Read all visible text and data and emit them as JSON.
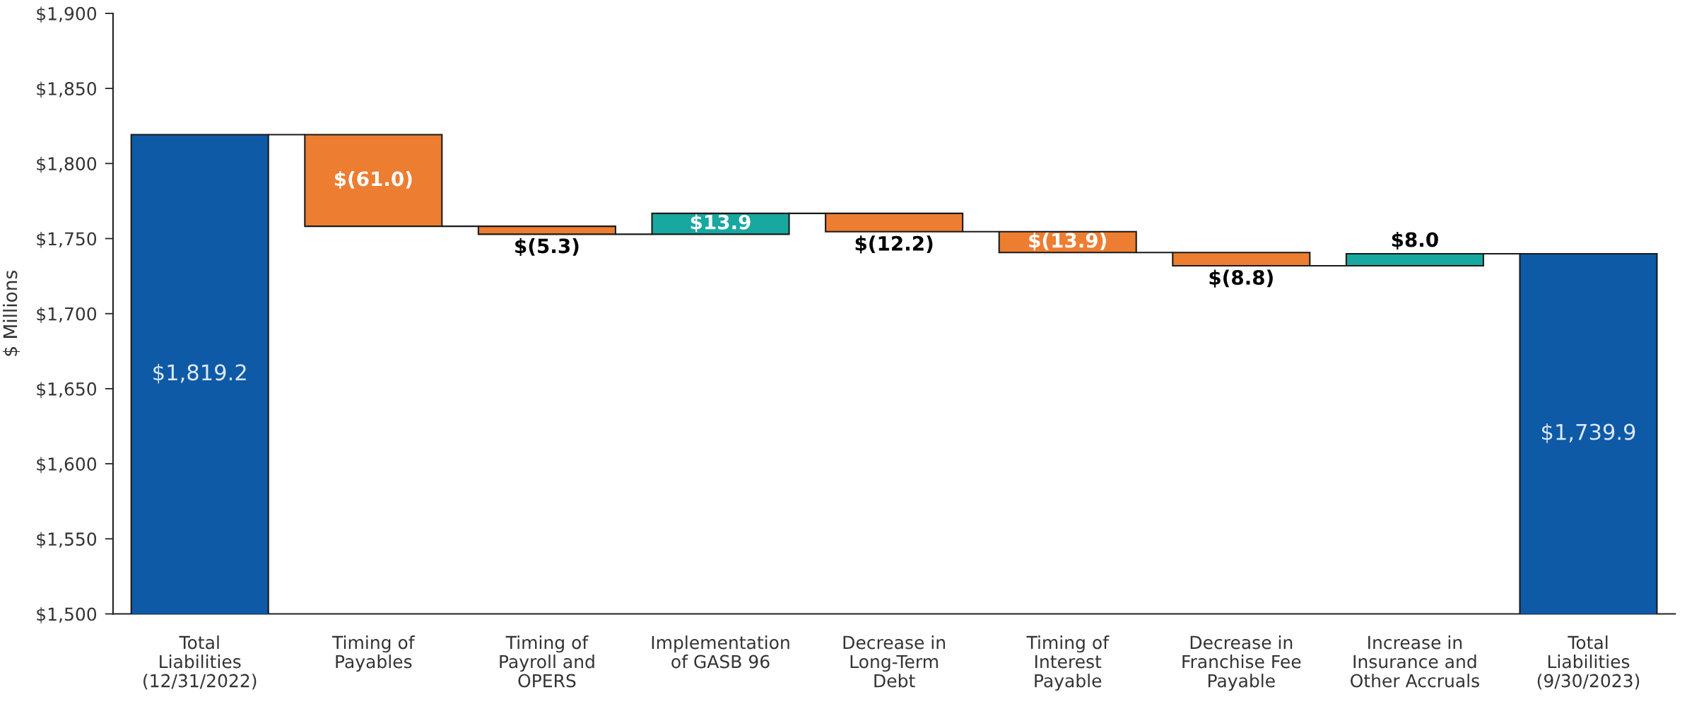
{
  "chart_data": {
    "type": "bar",
    "ylabel": "$ Millions",
    "categories": [
      "Total\nLiabilities\n(12/31/2022)",
      "Timing of\nPayables",
      "Timing of\nPayroll and\nOPERS",
      "Implementation\nof GASB 96",
      "Decrease in\nLong-Term\nDebt",
      "Timing of\nInterest\nPayable",
      "Decrease in\nFranchise Fee\nPayable",
      "Increase in\nInsurance and\nOther Accruals",
      "Total\nLiabilities\n(9/30/2023)"
    ],
    "values": [
      1819.2,
      -61.0,
      -5.3,
      13.9,
      -12.2,
      -13.9,
      -8.8,
      8.0,
      1739.9
    ],
    "base": [
      null,
      1819.2,
      1758.2,
      1752.9,
      1766.8,
      1754.6,
      1740.7,
      1731.9,
      null
    ],
    "colors": [
      "#0e5aa7",
      "#ed7d31",
      "#ed7d31",
      "#17a8a0",
      "#ed7d31",
      "#ed7d31",
      "#ed7d31",
      "#17a8a0",
      "#0e5aa7"
    ],
    "value_labels": [
      "$1,819.2",
      "$(61.0)",
      "$(5.3)",
      "$13.9",
      "$(12.2)",
      "$(13.9)",
      "$(8.8)",
      "$8.0",
      "$1,739.9"
    ],
    "ylim": [
      1500,
      1900
    ],
    "yticks": [
      {
        "value": 1500,
        "label": "$1,500"
      },
      {
        "value": 1550,
        "label": "$1,550"
      },
      {
        "value": 1600,
        "label": "$1,600"
      },
      {
        "value": 1650,
        "label": "$1,650"
      },
      {
        "value": 1700,
        "label": "$1,700"
      },
      {
        "value": 1750,
        "label": "$1,750"
      },
      {
        "value": 1800,
        "label": "$1,800"
      },
      {
        "value": 1850,
        "label": "$1,850"
      },
      {
        "value": 1900,
        "label": "$1,900"
      }
    ],
    "grid": false,
    "legend": false
  }
}
